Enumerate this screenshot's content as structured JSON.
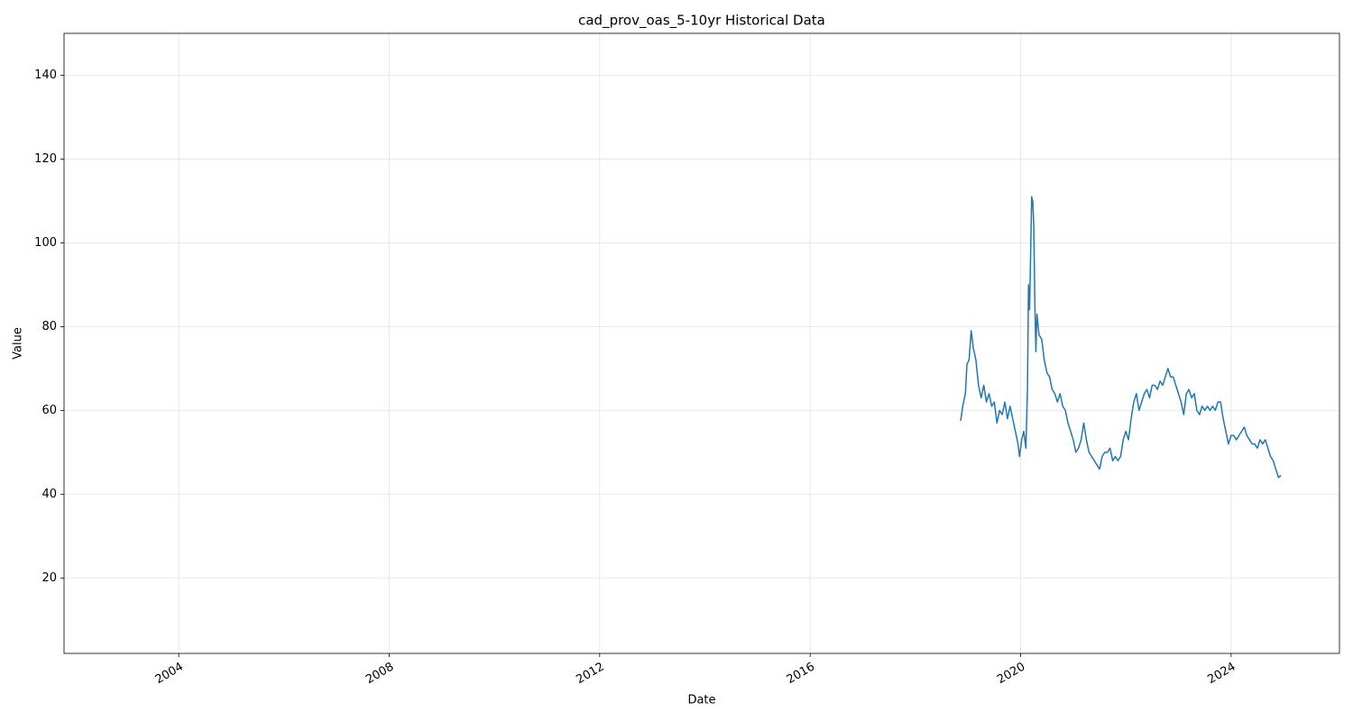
{
  "chart_data": {
    "type": "line",
    "title": "cad_prov_oas_5-10yr Historical Data",
    "x_label": "Date",
    "y_label": "Value",
    "x": [
      2018.86,
      2018.9,
      2018.95,
      2018.98,
      2019.02,
      2019.06,
      2019.1,
      2019.15,
      2019.2,
      2019.25,
      2019.3,
      2019.35,
      2019.4,
      2019.45,
      2019.5,
      2019.55,
      2019.6,
      2019.65,
      2019.7,
      2019.75,
      2019.8,
      2019.85,
      2019.9,
      2019.95,
      2019.98,
      2020.02,
      2020.06,
      2020.1,
      2020.13,
      2020.15,
      2020.17,
      2020.19,
      2020.21,
      2020.23,
      2020.25,
      2020.27,
      2020.29,
      2020.31,
      2020.35,
      2020.4,
      2020.45,
      2020.5,
      2020.55,
      2020.6,
      2020.65,
      2020.7,
      2020.75,
      2020.8,
      2020.85,
      2020.9,
      2020.95,
      2021.0,
      2021.05,
      2021.1,
      2021.15,
      2021.2,
      2021.25,
      2021.3,
      2021.35,
      2021.4,
      2021.45,
      2021.5,
      2021.55,
      2021.6,
      2021.65,
      2021.7,
      2021.75,
      2021.8,
      2021.85,
      2021.9,
      2021.95,
      2022.0,
      2022.05,
      2022.1,
      2022.15,
      2022.2,
      2022.25,
      2022.3,
      2022.35,
      2022.4,
      2022.45,
      2022.5,
      2022.55,
      2022.6,
      2022.65,
      2022.7,
      2022.75,
      2022.8,
      2022.85,
      2022.9,
      2022.95,
      2023.0,
      2023.05,
      2023.1,
      2023.15,
      2023.2,
      2023.25,
      2023.3,
      2023.35,
      2023.4,
      2023.45,
      2023.5,
      2023.55,
      2023.6,
      2023.65,
      2023.7,
      2023.75,
      2023.8,
      2023.85,
      2023.9,
      2023.95,
      2024.0,
      2024.05,
      2024.1,
      2024.15,
      2024.2,
      2024.25,
      2024.3,
      2024.35,
      2024.4,
      2024.45,
      2024.5,
      2024.55,
      2024.6,
      2024.65,
      2024.7,
      2024.75,
      2024.8,
      2024.85,
      2024.9,
      2024.95
    ],
    "series": [
      {
        "color": "#1f77b4",
        "values": [
          57.5,
          61,
          64,
          71,
          72,
          79,
          75,
          72,
          66,
          63,
          66,
          62,
          64,
          61,
          62,
          57,
          60,
          59,
          62,
          58,
          61,
          58,
          55,
          52,
          49,
          53,
          55,
          51,
          65,
          90,
          84,
          97,
          111,
          110,
          104,
          86,
          74,
          83,
          78,
          77,
          72,
          69,
          68,
          65,
          64,
          62,
          64,
          61,
          60,
          57,
          55,
          53,
          50,
          51,
          53,
          57,
          53,
          50,
          49,
          48,
          47,
          46,
          49,
          50,
          50,
          51,
          48,
          49,
          48,
          49,
          53,
          55,
          53,
          58,
          62,
          64,
          60,
          62,
          64,
          65,
          63,
          66,
          66,
          65,
          67,
          66,
          68,
          70,
          68,
          68,
          66,
          64,
          62,
          59,
          64,
          65,
          63,
          64,
          60,
          59,
          61,
          60,
          61,
          60,
          61,
          60,
          62,
          62,
          58,
          55,
          52,
          54,
          54,
          53,
          54,
          55,
          56,
          54,
          53,
          52,
          52,
          51,
          53,
          52,
          53,
          51,
          49,
          48,
          46,
          44,
          44.5
        ]
      }
    ],
    "xlim": [
      2001.82,
      2026.06
    ],
    "xticks": [
      2004,
      2008,
      2012,
      2016,
      2020,
      2024
    ],
    "ylim": [
      2,
      150
    ],
    "yticks": [
      20,
      40,
      60,
      80,
      100,
      120,
      140
    ],
    "grid": true
  }
}
